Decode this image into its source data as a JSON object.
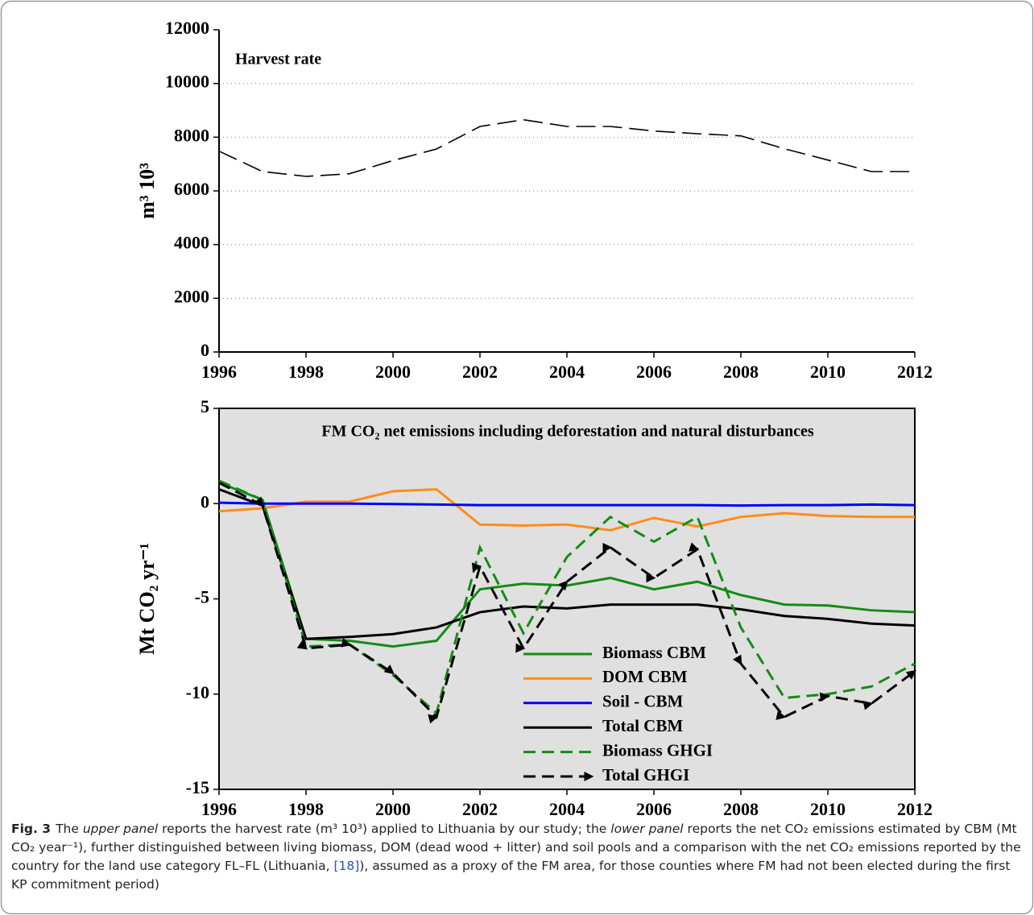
{
  "chart_data": [
    {
      "type": "line",
      "title": "Harvest rate",
      "ylabel": "m³ 10³",
      "x": [
        1996,
        1997,
        1998,
        1999,
        2000,
        2001,
        2002,
        2003,
        2004,
        2005,
        2006,
        2007,
        2008,
        2009,
        2010,
        2011,
        2012
      ],
      "series": [
        {
          "color": "#000000",
          "dash": true,
          "values": [
            7480,
            6720,
            6540,
            6640,
            7130,
            7560,
            8400,
            8650,
            8400,
            8400,
            8230,
            8130,
            8050,
            7570,
            7150,
            6720,
            6720
          ]
        }
      ],
      "xlim": [
        1996,
        2012
      ],
      "xticks": [
        1996,
        1998,
        2000,
        2002,
        2004,
        2006,
        2008,
        2010,
        2012
      ],
      "ylim": [
        0,
        12000
      ],
      "yticks": [
        0,
        2000,
        4000,
        6000,
        8000,
        10000,
        12000
      ],
      "grid": true
    },
    {
      "type": "line",
      "title": "FM CO₂ net emissions including deforestation and natural disturbances",
      "ylabel": "Mt CO₂ yr⁻¹",
      "x": [
        1996,
        1997,
        1998,
        1999,
        2000,
        2001,
        2002,
        2003,
        2004,
        2005,
        2006,
        2007,
        2008,
        2009,
        2010,
        2011,
        2012
      ],
      "series": [
        {
          "name": "Biomass CBM",
          "color": "#148c14",
          "dash": false,
          "values": [
            1.1,
            0.2,
            -7.1,
            -7.2,
            -7.5,
            -7.2,
            -4.5,
            -4.2,
            -4.3,
            -3.9,
            -4.5,
            -4.1,
            -4.8,
            -5.3,
            -5.35,
            -5.6,
            -5.7
          ]
        },
        {
          "name": "DOM CBM",
          "color": "#ff8c1a",
          "dash": false,
          "values": [
            -0.4,
            -0.25,
            0.1,
            0.1,
            0.65,
            0.75,
            -1.1,
            -1.15,
            -1.1,
            -1.4,
            -0.75,
            -1.2,
            -0.7,
            -0.5,
            -0.65,
            -0.7,
            -0.7
          ]
        },
        {
          "name": "Soil - CBM",
          "color": "#0000ff",
          "dash": false,
          "values": [
            0.05,
            0.0,
            0.0,
            0.0,
            -0.02,
            -0.05,
            -0.08,
            -0.08,
            -0.08,
            -0.08,
            -0.08,
            -0.08,
            -0.1,
            -0.08,
            -0.08,
            -0.05,
            -0.08
          ]
        },
        {
          "name": "Total CBM",
          "color": "#000000",
          "dash": false,
          "values": [
            0.75,
            -0.1,
            -7.1,
            -7.0,
            -6.85,
            -6.5,
            -5.7,
            -5.4,
            -5.5,
            -5.3,
            -5.3,
            -5.3,
            -5.55,
            -5.9,
            -6.05,
            -6.3,
            -6.4
          ]
        },
        {
          "name": "Biomass GHGI",
          "color": "#148c14",
          "dash": true,
          "values": [
            1.2,
            0.2,
            -7.5,
            -7.4,
            -9.0,
            -11.0,
            -2.3,
            -6.8,
            -2.8,
            -0.7,
            -2.0,
            -0.7,
            -6.5,
            -10.2,
            -10.0,
            -9.6,
            -8.4
          ]
        },
        {
          "name": "Total GHGI",
          "color": "#000000",
          "dash": true,
          "marker": "arrow",
          "values": [
            1.1,
            -0.1,
            -7.6,
            -7.4,
            -8.9,
            -11.2,
            -3.3,
            -7.6,
            -4.1,
            -2.3,
            -3.9,
            -2.4,
            -8.4,
            -11.2,
            -10.1,
            -10.5,
            -8.8
          ]
        }
      ],
      "xlim": [
        1996,
        2012
      ],
      "xticks": [
        1996,
        1998,
        2000,
        2002,
        2004,
        2006,
        2008,
        2010,
        2012
      ],
      "ylim": [
        -15,
        5
      ],
      "yticks": [
        -15,
        -10,
        -5,
        0,
        5
      ],
      "grid": false,
      "background": "#e0e0e0",
      "legend": "lower center"
    }
  ],
  "caption": {
    "label": "Fig. 3",
    "segments": [
      {
        "text": "The"
      },
      {
        "text": "upper panel",
        "style": "italic"
      },
      {
        "text": "reports the harvest rate (m³ 10³) applied to Lithuania by our study; the"
      },
      {
        "text": "lower panel",
        "style": "italic"
      },
      {
        "text": "reports the net CO₂ emissions estimated by CBM (Mt CO₂ year⁻¹), further distinguished between living biomass, DOM (dead wood + litter) and soil pools and a comparison with the net CO₂ emissions reported by the country for the land use category FL–FL (Lithuania,"
      },
      {
        "text": "[18]",
        "style": "link"
      },
      {
        "text": "), assumed as a proxy of the FM area, for those counties where FM had not been elected during the first KP commitment period)"
      }
    ]
  }
}
